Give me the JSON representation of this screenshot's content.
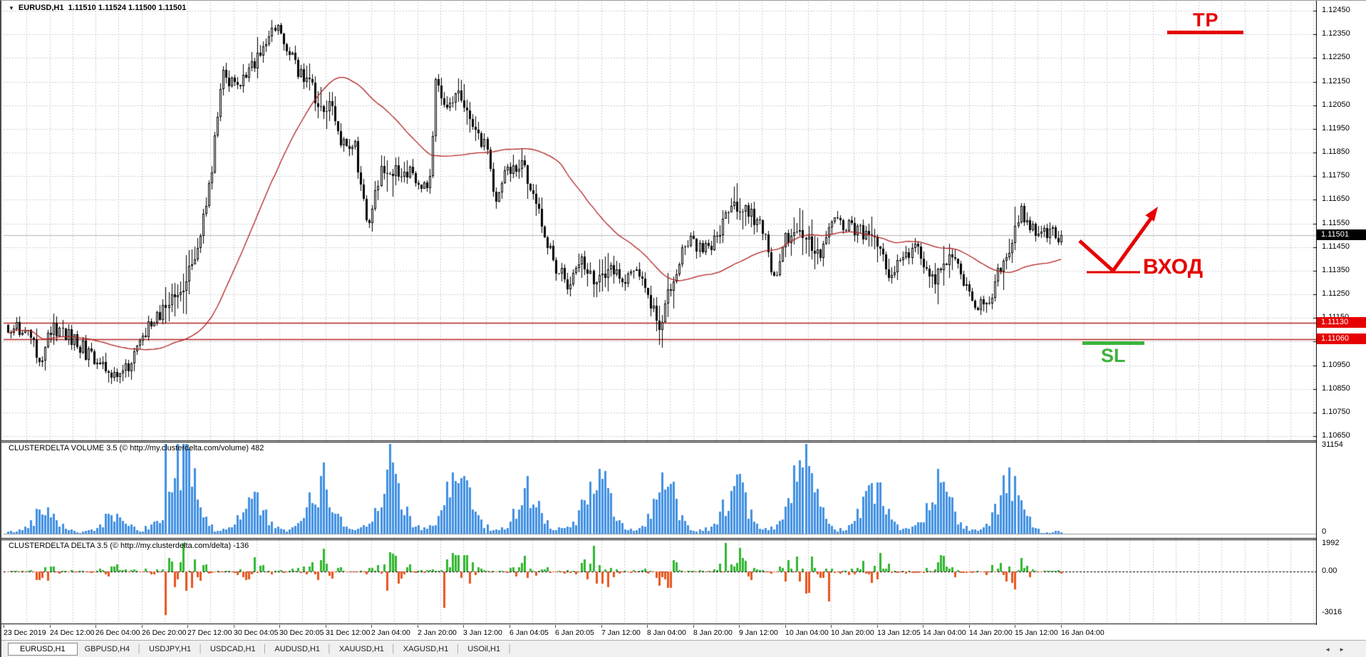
{
  "window": {
    "dropdown_icon": "▼",
    "symbol_title": "EURUSD,H1",
    "ohlc_text": "1.11510 1.11524 1.11500 1.11501"
  },
  "panes": {
    "volume_label": "CLUSTERDELTA VOLUME 3.5 (© http://my.clusterdelta.com/volume) 482",
    "delta_label": "CLUSTERDELTA DELTA 3.5 (© http://my.clusterdelta.com/delta) -136"
  },
  "axes": {
    "price_labels": [
      "1.12450",
      "1.12350",
      "1.12250",
      "1.12150",
      "1.12050",
      "1.11950",
      "1.11850",
      "1.11750",
      "1.11650",
      "1.11550",
      "1.11450",
      "1.11350",
      "1.11250",
      "1.11150",
      "1.11050",
      "1.10950",
      "1.10850",
      "1.10750",
      "1.10650"
    ],
    "current_price_box": "1.11501",
    "level_boxes": [
      "1.11130",
      "1.11060"
    ],
    "volume_labels": [
      "31154",
      "0"
    ],
    "delta_labels": [
      "1992",
      "0.00",
      "-3016"
    ]
  },
  "annotations": {
    "tp_label": "TP",
    "entry_label": "ВХОД",
    "sl_label": "SL",
    "red": "#e60000",
    "green": "#3db33d"
  },
  "tabs": {
    "items": [
      {
        "label": "EURUSD,H1",
        "active": true
      },
      {
        "label": "GBPUSD,H4",
        "active": false
      },
      {
        "label": "USDJPY,H1",
        "active": false
      },
      {
        "label": "USDCAD,H1",
        "active": false
      },
      {
        "label": "AUDUSD,H1",
        "active": false
      },
      {
        "label": "XAUUSD,H1",
        "active": false
      },
      {
        "label": "XAGUSD,H1",
        "active": false
      },
      {
        "label": "USOil,H1",
        "active": false
      }
    ],
    "scroll_left": "◄",
    "scroll_right": "►"
  },
  "chart_data": {
    "type": "candlestick",
    "symbol": "EURUSD",
    "timeframe": "H1",
    "title": "EURUSD,H1 1.11510 1.11524 1.11500 1.11501",
    "ylim": [
      1.1065,
      1.1245
    ],
    "price_step": 0.001,
    "current_price": 1.11501,
    "level_lines": [
      1.1113,
      1.1106
    ],
    "bars": 368,
    "ma_period": 45,
    "colors": {
      "volume_bar": "#3f8fe2",
      "delta_pos": "#2fb62f",
      "delta_neg": "#e7541e",
      "ma_line": "#b22222",
      "level_line": "#b22222",
      "grid": "#cdcdcd",
      "current_price_line": "#b4b4b4"
    },
    "price_path_anchors": [
      [
        0,
        1.1112
      ],
      [
        8,
        1.1106
      ],
      [
        11,
        1.1097
      ],
      [
        15,
        1.111
      ],
      [
        23,
        1.1106
      ],
      [
        31,
        1.1095
      ],
      [
        39,
        1.109
      ],
      [
        44,
        1.1098
      ],
      [
        50,
        1.1113
      ],
      [
        56,
        1.1122
      ],
      [
        62,
        1.113
      ],
      [
        69,
        1.116
      ],
      [
        75,
        1.1219
      ],
      [
        80,
        1.1211
      ],
      [
        86,
        1.1222
      ],
      [
        93,
        1.1239
      ],
      [
        97,
        1.1228
      ],
      [
        102,
        1.1218
      ],
      [
        106,
        1.1212
      ],
      [
        110,
        1.12
      ],
      [
        112,
        1.1205
      ],
      [
        116,
        1.119
      ],
      [
        121,
        1.1188
      ],
      [
        123,
        1.117
      ],
      [
        126,
        1.1152
      ],
      [
        130,
        1.118
      ],
      [
        136,
        1.1176
      ],
      [
        140,
        1.1178
      ],
      [
        144,
        1.117
      ],
      [
        147,
        1.1172
      ],
      [
        149,
        1.1213
      ],
      [
        153,
        1.1205
      ],
      [
        158,
        1.121
      ],
      [
        162,
        1.1195
      ],
      [
        167,
        1.1186
      ],
      [
        169,
        1.1165
      ],
      [
        173,
        1.1175
      ],
      [
        179,
        1.1181
      ],
      [
        184,
        1.1166
      ],
      [
        187,
        1.1152
      ],
      [
        191,
        1.1136
      ],
      [
        195,
        1.113
      ],
      [
        200,
        1.1138
      ],
      [
        205,
        1.113
      ],
      [
        210,
        1.1137
      ],
      [
        215,
        1.1132
      ],
      [
        219,
        1.1138
      ],
      [
        223,
        1.1125
      ],
      [
        227,
        1.1112
      ],
      [
        230,
        1.1125
      ],
      [
        234,
        1.114
      ],
      [
        238,
        1.1147
      ],
      [
        244,
        1.1144
      ],
      [
        249,
        1.1155
      ],
      [
        254,
        1.1163
      ],
      [
        259,
        1.1158
      ],
      [
        263,
        1.1152
      ],
      [
        267,
        1.1132
      ],
      [
        271,
        1.1148
      ],
      [
        277,
        1.1152
      ],
      [
        283,
        1.1141
      ],
      [
        288,
        1.1157
      ],
      [
        295,
        1.1153
      ],
      [
        301,
        1.115
      ],
      [
        307,
        1.1133
      ],
      [
        312,
        1.1142
      ],
      [
        317,
        1.1146
      ],
      [
        322,
        1.113
      ],
      [
        326,
        1.114
      ],
      [
        331,
        1.1136
      ],
      [
        336,
        1.1122
      ],
      [
        342,
        1.1118
      ],
      [
        345,
        1.1135
      ],
      [
        348,
        1.1142
      ],
      [
        353,
        1.116
      ],
      [
        357,
        1.1152
      ],
      [
        362,
        1.1152
      ],
      [
        365,
        1.115
      ],
      [
        367,
        1.11501
      ]
    ],
    "volume": {
      "max": 31154,
      "last": 482,
      "spike_bar": 55,
      "day_peaks": [
        9500,
        7000,
        31154,
        13000,
        18500,
        23000,
        22500,
        15500,
        21000,
        17500,
        16500,
        25000,
        17000,
        18000,
        17500,
        5000
      ]
    },
    "delta": {
      "max": 1992,
      "min": -3016,
      "last": -136,
      "zero_label": "0.00",
      "forced": {
        "55": -3016,
        "152": -2550,
        "204": 1800,
        "250": 1992,
        "286": -2100,
        "367": -136
      }
    },
    "time_labels": [
      "23 Dec 2019",
      "24 Dec 12:00",
      "26 Dec 04:00",
      "26 Dec 20:00",
      "27 Dec 12:00",
      "30 Dec 04:05",
      "30 Dec 20:05",
      "31 Dec 12:00",
      "2 Jan 04:00",
      "2 Jan 20:00",
      "3 Jan 12:00",
      "6 Jan 04:05",
      "6 Jan 20:05",
      "7 Jan 12:00",
      "8 Jan 04:00",
      "8 Jan 20:00",
      "9 Jan 12:00",
      "10 Jan 04:00",
      "10 Jan 20:00",
      "13 Jan 12:05",
      "14 Jan 04:00",
      "14 Jan 20:00",
      "15 Jan 12:00",
      "16 Jan 04:00"
    ]
  }
}
